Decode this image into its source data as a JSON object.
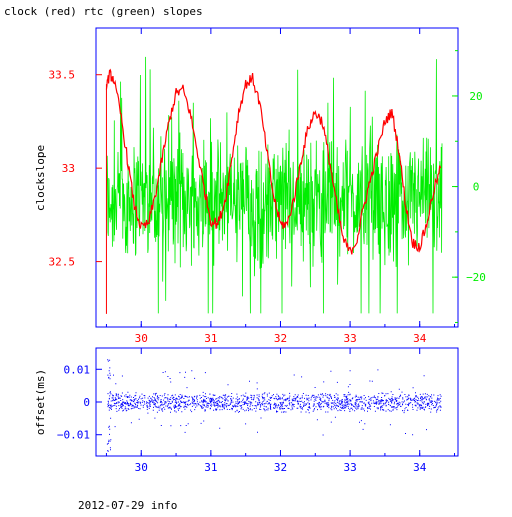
{
  "colors": {
    "red": "#ff0000",
    "green": "#00ee00",
    "blue": "#0000ff",
    "black": "#000000"
  },
  "chart_data": [
    {
      "type": "line",
      "title": "clock (red) rtc (green) slopes",
      "xlabel": "",
      "ylabel": "clockslope",
      "x_ticks": [
        "30",
        "31",
        "32",
        "33",
        "34"
      ],
      "xlim": [
        29.35,
        34.55
      ],
      "ylim_left": [
        32.15,
        33.75
      ],
      "left_ticks": [
        "32.5",
        "33",
        "33.5"
      ],
      "left_tick_values": [
        32.5,
        33.0,
        33.5
      ],
      "ylim_right": [
        -31,
        35
      ],
      "right_ticks": [
        "−20",
        "0",
        "20"
      ],
      "right_tick_values": [
        -20,
        0,
        20
      ],
      "grid": false,
      "series": [
        {
          "name": "clock",
          "axis": "left",
          "color": "#ff0000",
          "x": [
            29.5,
            29.55,
            29.6,
            29.7,
            29.8,
            29.9,
            30.0,
            30.1,
            30.2,
            30.3,
            30.4,
            30.5,
            30.6,
            30.7,
            30.8,
            30.9,
            31.0,
            31.1,
            31.2,
            31.3,
            31.4,
            31.5,
            31.6,
            31.7,
            31.8,
            31.9,
            32.0,
            32.1,
            32.2,
            32.3,
            32.4,
            32.5,
            32.6,
            32.7,
            32.8,
            32.9,
            33.0,
            33.1,
            33.2,
            33.3,
            33.4,
            33.5,
            33.6,
            33.7,
            33.8,
            33.9,
            34.0,
            34.1,
            34.2,
            34.3
          ],
          "y": [
            33.45,
            33.5,
            33.48,
            33.3,
            33.05,
            32.8,
            32.68,
            32.7,
            32.85,
            33.05,
            33.25,
            33.4,
            33.42,
            33.3,
            33.1,
            32.9,
            32.72,
            32.7,
            32.82,
            33.05,
            33.3,
            33.45,
            33.48,
            33.35,
            33.1,
            32.85,
            32.7,
            32.7,
            32.85,
            33.05,
            33.22,
            33.3,
            33.25,
            33.05,
            32.82,
            32.62,
            32.55,
            32.62,
            32.8,
            32.95,
            33.1,
            33.25,
            33.3,
            33.1,
            32.8,
            32.6,
            32.58,
            32.7,
            32.88,
            33.0
          ]
        },
        {
          "name": "rtc",
          "axis": "right",
          "color": "#00ee00",
          "band_center": -3,
          "band_half_width": 12,
          "spike_max": 33,
          "spike_min": -28
        }
      ]
    },
    {
      "type": "scatter",
      "title": "",
      "xlabel": "",
      "ylabel": "offset(ms)",
      "x_ticks": [
        "30",
        "31",
        "32",
        "33",
        "34"
      ],
      "xlim": [
        29.35,
        34.55
      ],
      "ylim": [
        -0.0165,
        0.0165
      ],
      "y_ticks": [
        "−0.01",
        "0",
        "0.01"
      ],
      "y_tick_values": [
        -0.01,
        0,
        0.01
      ],
      "series": [
        {
          "name": "offset",
          "color": "#0000ff",
          "x_range": [
            29.5,
            34.3
          ],
          "center": 0.0,
          "band_half_width": 0.003
        }
      ]
    }
  ],
  "footer": {
    "text": "2012-07-29 info"
  }
}
